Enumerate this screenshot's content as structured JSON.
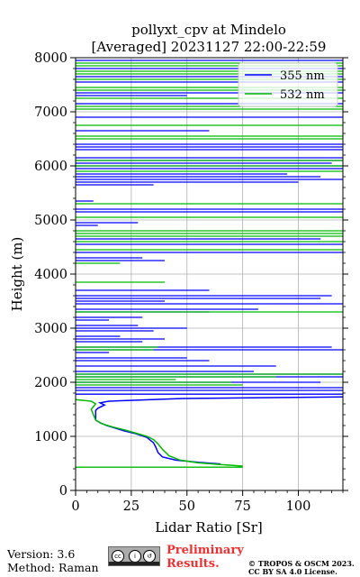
{
  "chart_data": {
    "type": "line",
    "title_line1": "pollyxt_cpv at Mindelo",
    "title_line2": "[Averaged] 20231127 22:00-22:59",
    "xlabel": "Lidar Ratio [Sr]",
    "ylabel": "Height (m)",
    "xlim": [
      0,
      120
    ],
    "ylim": [
      0,
      8000
    ],
    "xticks": [
      0,
      25,
      50,
      75,
      100
    ],
    "yticks": [
      0,
      1000,
      2000,
      3000,
      4000,
      5000,
      6000,
      7000,
      8000
    ],
    "grid": true,
    "legend_position": "top-right",
    "series": [
      {
        "name": "355 nm",
        "color": "#0000ff",
        "points": [
          [
            65,
            490
          ],
          [
            55,
            520
          ],
          [
            45,
            560
          ],
          [
            39,
            620
          ],
          [
            37,
            700
          ],
          [
            36,
            800
          ],
          [
            35,
            880
          ],
          [
            32,
            980
          ],
          [
            27,
            1050
          ],
          [
            22,
            1100
          ],
          [
            18,
            1150
          ],
          [
            14,
            1200
          ],
          [
            11,
            1250
          ],
          [
            9,
            1300
          ],
          [
            9,
            1400
          ],
          [
            9,
            1480
          ],
          [
            10,
            1520
          ],
          [
            13,
            1580
          ],
          [
            11,
            1620
          ],
          [
            15,
            1650
          ],
          [
            48,
            1700
          ],
          [
            120,
            1730
          ]
        ],
        "segments": [
          [
            120,
            1780,
            0,
            1780
          ],
          [
            0,
            1850,
            120,
            1850
          ],
          [
            120,
            1900,
            0,
            1900
          ],
          [
            0,
            2000,
            110,
            2000
          ],
          [
            0,
            2100,
            120,
            2100
          ],
          [
            0,
            2150,
            120,
            2150
          ],
          [
            0,
            2200,
            80,
            2200
          ],
          [
            0,
            2300,
            90,
            2300
          ],
          [
            0,
            2400,
            60,
            2400
          ],
          [
            0,
            2450,
            50,
            2450
          ],
          [
            0,
            2550,
            15,
            2550
          ],
          [
            0,
            2600,
            120,
            2600
          ],
          [
            0,
            2650,
            115,
            2650
          ],
          [
            0,
            2750,
            30,
            2750
          ],
          [
            0,
            2800,
            40,
            2800
          ],
          [
            0,
            2850,
            20,
            2850
          ],
          [
            0,
            2950,
            35,
            2950
          ],
          [
            0,
            3000,
            50,
            3000
          ],
          [
            0,
            3050,
            28,
            3050
          ],
          [
            0,
            3150,
            15,
            3150
          ],
          [
            0,
            3200,
            30,
            3200
          ],
          [
            0,
            3300,
            60,
            3300
          ],
          [
            0,
            3350,
            82,
            3350
          ],
          [
            0,
            3450,
            120,
            3450
          ],
          [
            0,
            3500,
            40,
            3500
          ],
          [
            0,
            3550,
            110,
            3550
          ],
          [
            0,
            3600,
            115,
            3600
          ],
          [
            0,
            3700,
            60,
            3700
          ],
          [
            0,
            4250,
            40,
            4250
          ],
          [
            0,
            4300,
            30,
            4300
          ],
          [
            0,
            4400,
            120,
            4400
          ],
          [
            0,
            4550,
            120,
            4550
          ],
          [
            0,
            4650,
            110,
            4650
          ],
          [
            0,
            4900,
            10,
            4900
          ],
          [
            0,
            4950,
            28,
            4950
          ],
          [
            0,
            5150,
            120,
            5150
          ],
          [
            0,
            5200,
            120,
            5200
          ],
          [
            0,
            5350,
            8,
            5350
          ],
          [
            0,
            5650,
            35,
            5650
          ],
          [
            0,
            5700,
            100,
            5700
          ],
          [
            0,
            5750,
            120,
            5750
          ],
          [
            0,
            5800,
            110,
            5800
          ],
          [
            0,
            5850,
            95,
            5850
          ],
          [
            0,
            5950,
            120,
            5950
          ],
          [
            0,
            6000,
            120,
            6000
          ],
          [
            0,
            6050,
            115,
            6050
          ],
          [
            0,
            6100,
            120,
            6100
          ],
          [
            0,
            6150,
            120,
            6150
          ],
          [
            0,
            6300,
            120,
            6300
          ],
          [
            0,
            6350,
            120,
            6350
          ],
          [
            0,
            6400,
            120,
            6400
          ],
          [
            0,
            6650,
            60,
            6650
          ],
          [
            0,
            6900,
            120,
            6900
          ],
          [
            0,
            7150,
            120,
            7150
          ],
          [
            0,
            7300,
            50,
            7300
          ],
          [
            0,
            7350,
            120,
            7350
          ],
          [
            0,
            7550,
            120,
            7550
          ],
          [
            0,
            7650,
            120,
            7650
          ],
          [
            0,
            7800,
            120,
            7800
          ],
          [
            0,
            7950,
            120,
            7950
          ]
        ]
      },
      {
        "name": "532 nm",
        "color": "#00bb00",
        "points": [
          [
            75,
            450
          ],
          [
            65,
            480
          ],
          [
            55,
            510
          ],
          [
            47,
            560
          ],
          [
            42,
            640
          ],
          [
            39,
            760
          ],
          [
            37,
            860
          ],
          [
            35,
            940
          ],
          [
            32,
            1000
          ],
          [
            27,
            1060
          ],
          [
            22,
            1120
          ],
          [
            17,
            1170
          ],
          [
            12,
            1230
          ],
          [
            9,
            1300
          ],
          [
            8,
            1400
          ],
          [
            7,
            1500
          ],
          [
            8,
            1550
          ],
          [
            9,
            1600
          ],
          [
            7,
            1650
          ],
          [
            0,
            1680
          ]
        ],
        "segments": [
          [
            75,
            430,
            0,
            430
          ],
          [
            0,
            1950,
            75,
            1950
          ],
          [
            0,
            2000,
            70,
            2000
          ],
          [
            0,
            2050,
            45,
            2050
          ],
          [
            0,
            2100,
            90,
            2100
          ],
          [
            0,
            2150,
            120,
            2150
          ],
          [
            0,
            2600,
            35,
            2600
          ],
          [
            0,
            2650,
            37,
            2650
          ],
          [
            0,
            3300,
            120,
            3300
          ],
          [
            0,
            3850,
            40,
            3850
          ],
          [
            0,
            4200,
            20,
            4200
          ],
          [
            0,
            4450,
            120,
            4450
          ],
          [
            0,
            4600,
            120,
            4600
          ],
          [
            0,
            4700,
            120,
            4700
          ],
          [
            0,
            4750,
            120,
            4750
          ],
          [
            0,
            4800,
            120,
            4800
          ],
          [
            0,
            5050,
            120,
            5050
          ],
          [
            0,
            5300,
            120,
            5300
          ],
          [
            0,
            5900,
            120,
            5900
          ],
          [
            0,
            6000,
            120,
            6000
          ],
          [
            0,
            6100,
            120,
            6100
          ],
          [
            0,
            6500,
            120,
            6500
          ],
          [
            0,
            6550,
            120,
            6550
          ],
          [
            0,
            6750,
            120,
            6750
          ],
          [
            0,
            7050,
            120,
            7050
          ],
          [
            0,
            7100,
            120,
            7100
          ],
          [
            0,
            7250,
            120,
            7250
          ],
          [
            0,
            7400,
            120,
            7400
          ],
          [
            0,
            7450,
            120,
            7450
          ],
          [
            0,
            7600,
            120,
            7600
          ],
          [
            0,
            7700,
            120,
            7700
          ],
          [
            0,
            7750,
            120,
            7750
          ],
          [
            0,
            7850,
            120,
            7850
          ],
          [
            0,
            7900,
            120,
            7900
          ]
        ]
      }
    ]
  },
  "footer": {
    "version": "Version: 3.6",
    "method": "Method: Raman",
    "preliminary_line1": "Preliminary",
    "preliminary_line2": "Results.",
    "copyright_line1": "© TROPOS & OSCM 2023.",
    "copyright_line2": "CC BY SA 4.0 License.",
    "license_badge_icons": [
      "cc-icon",
      "by-icon",
      "sa-icon"
    ]
  }
}
